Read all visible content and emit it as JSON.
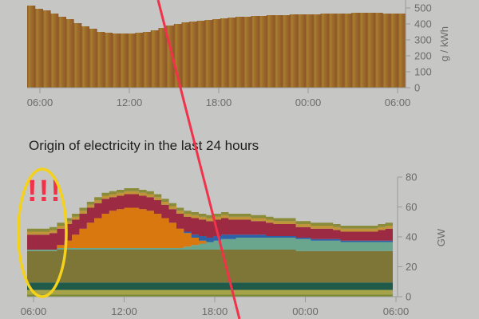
{
  "origin_title": "Origin of electricity in the last 24 hours",
  "annotation_text": "!!!",
  "colors": {
    "background": "#c6c6c4",
    "red_marker": "#f0324b",
    "yellow_circle": "#f4d21c",
    "intensity_fill_dark": "#8c5426",
    "intensity_fill_light": "#a67f30"
  },
  "chart_data": [
    {
      "type": "bar",
      "ylabel": "g / kWh",
      "ylim": [
        0,
        550
      ],
      "yticks": [
        "0",
        "100",
        "200",
        "300",
        "400",
        "500"
      ],
      "xticks": [
        "06:00",
        "12:00",
        "18:00",
        "00:00",
        "06:00"
      ],
      "x": [
        "06:00",
        "06:30",
        "07:00",
        "07:30",
        "08:00",
        "08:30",
        "09:00",
        "09:30",
        "10:00",
        "10:30",
        "11:00",
        "11:30",
        "12:00",
        "12:30",
        "13:00",
        "13:30",
        "14:00",
        "14:30",
        "15:00",
        "15:30",
        "16:00",
        "16:30",
        "17:00",
        "17:30",
        "18:00",
        "18:30",
        "19:00",
        "19:30",
        "20:00",
        "20:30",
        "21:00",
        "21:30",
        "22:00",
        "22:30",
        "23:00",
        "23:30",
        "00:00",
        "00:30",
        "01:00",
        "01:30",
        "02:00",
        "02:30",
        "03:00",
        "03:30",
        "04:00",
        "04:30",
        "05:00",
        "05:30",
        "06:00"
      ],
      "values": [
        515,
        495,
        485,
        465,
        445,
        430,
        405,
        385,
        370,
        350,
        345,
        340,
        340,
        340,
        345,
        350,
        360,
        375,
        390,
        400,
        410,
        415,
        420,
        425,
        430,
        435,
        440,
        445,
        445,
        450,
        450,
        455,
        455,
        455,
        460,
        460,
        460,
        460,
        465,
        465,
        465,
        465,
        470,
        470,
        470,
        470,
        465,
        465,
        465
      ]
    },
    {
      "type": "area",
      "ylabel": "GW",
      "ylim": [
        0,
        80
      ],
      "yticks": [
        "0",
        "20",
        "40",
        "60",
        "80"
      ],
      "xticks": [
        "06:00",
        "12:00",
        "18:00",
        "00:00",
        "06:00"
      ],
      "x": [
        "06:00",
        "06:30",
        "07:00",
        "07:30",
        "08:00",
        "08:30",
        "09:00",
        "09:30",
        "10:00",
        "10:30",
        "11:00",
        "11:30",
        "12:00",
        "12:30",
        "13:00",
        "13:30",
        "14:00",
        "14:30",
        "15:00",
        "15:30",
        "16:00",
        "16:30",
        "17:00",
        "17:30",
        "18:00",
        "18:30",
        "19:00",
        "19:30",
        "20:00",
        "20:30",
        "21:00",
        "21:30",
        "22:00",
        "22:30",
        "23:00",
        "23:30",
        "00:00",
        "00:30",
        "01:00",
        "01:30",
        "02:00",
        "02:30",
        "03:00",
        "03:30",
        "04:00",
        "04:30",
        "05:00",
        "05:30",
        "06:00"
      ],
      "series": [
        {
          "color": "#7a8a2a",
          "values": [
            1.5,
            1.5,
            1.5,
            1.5,
            1.5,
            1.5,
            1.5,
            1.5,
            1.5,
            1.5,
            1.5,
            1.5,
            1.5,
            1.5,
            1.5,
            1.5,
            1.5,
            1.5,
            1.5,
            1.5,
            1.5,
            1.5,
            1.5,
            1.5,
            1.5,
            1.5,
            1.5,
            1.5,
            1.5,
            1.5,
            1.5,
            1.5,
            1.5,
            1.5,
            1.5,
            1.5,
            1.5,
            1.5,
            1.5,
            1.5,
            1.5,
            1.5,
            1.5,
            1.5,
            1.5,
            1.5,
            1.5,
            1.5,
            1.5
          ]
        },
        {
          "color": "#a7a34a",
          "values": [
            3,
            3,
            3,
            3,
            3,
            3,
            3,
            3,
            3,
            3,
            3,
            3,
            3,
            3,
            3,
            3,
            3,
            3,
            3,
            3,
            3,
            3,
            3,
            3,
            3,
            3,
            3,
            3,
            3,
            3,
            3,
            3,
            3,
            3,
            3,
            3,
            3,
            3,
            3,
            3,
            3,
            3,
            3,
            3,
            3,
            3,
            3,
            3,
            3
          ]
        },
        {
          "color": "#1f5a4a",
          "values": [
            5,
            5,
            5,
            5,
            5,
            5,
            5,
            5,
            5,
            5,
            5,
            5,
            5,
            5,
            5,
            5,
            5,
            5,
            5,
            5,
            5,
            5,
            5,
            5,
            5,
            5,
            5,
            5,
            5,
            5,
            5,
            5,
            5,
            5,
            5,
            5,
            5,
            5,
            5,
            5,
            5,
            5,
            5,
            5,
            5,
            5,
            5,
            5,
            5
          ]
        },
        {
          "color": "#7d7636",
          "values": [
            21,
            21,
            21,
            21,
            22,
            22,
            22,
            22,
            22,
            22,
            22,
            22,
            22,
            22,
            22,
            22,
            22,
            22,
            22,
            22,
            22,
            22,
            22,
            22,
            22,
            22,
            22,
            22,
            22,
            22,
            22,
            22,
            22,
            22,
            22,
            22,
            21,
            21,
            21,
            21,
            21,
            21,
            21,
            21,
            21,
            21,
            21,
            21,
            21
          ]
        },
        {
          "color": "#6aa58e",
          "values": [
            1,
            1,
            1,
            1,
            1,
            1,
            1,
            1,
            1,
            1,
            1,
            1,
            1,
            1,
            1,
            1,
            1,
            1,
            1,
            1,
            1,
            2,
            3,
            4,
            5,
            6,
            7,
            7,
            8,
            8,
            8,
            8,
            8,
            8,
            8,
            8,
            8,
            8,
            7,
            7,
            7,
            7,
            6,
            6,
            6,
            6,
            6,
            6,
            6
          ]
        },
        {
          "color": "#d9780f",
          "values": [
            0,
            0,
            0,
            0,
            2,
            5,
            9,
            13,
            17,
            20,
            23,
            25,
            26,
            27,
            27,
            26,
            25,
            23,
            20,
            17,
            13,
            9,
            5,
            2,
            0,
            0,
            0,
            0,
            0,
            0,
            0,
            0,
            0,
            0,
            0,
            0,
            0,
            0,
            0,
            0,
            0,
            0,
            0,
            0,
            0,
            0,
            0,
            0,
            0
          ]
        },
        {
          "color": "#2e62a8",
          "values": [
            0,
            0,
            0,
            0,
            0,
            0,
            0,
            0,
            0,
            0,
            0,
            0,
            0,
            0,
            0,
            0,
            0,
            0,
            0,
            0,
            0,
            1,
            2,
            3,
            3,
            3,
            3,
            3,
            2,
            2,
            2,
            2,
            1,
            1,
            1,
            1,
            1,
            1,
            1,
            1,
            1,
            1,
            1,
            1,
            1,
            1,
            1,
            1,
            1
          ]
        },
        {
          "color": "#9c2a43",
          "values": [
            10,
            10,
            10,
            11,
            11,
            11,
            10,
            10,
            10,
            10,
            10,
            9,
            9,
            9,
            9,
            9,
            9,
            9,
            9,
            9,
            10,
            10,
            11,
            11,
            11,
            11,
            11,
            10,
            10,
            10,
            9,
            9,
            9,
            8,
            8,
            8,
            7,
            7,
            7,
            7,
            7,
            6,
            6,
            6,
            6,
            6,
            6,
            7,
            8
          ]
        },
        {
          "color": "#c0953a",
          "values": [
            2,
            2,
            2,
            2,
            2,
            2,
            2,
            2,
            2,
            2,
            2,
            2,
            2,
            2,
            2,
            2,
            2,
            2,
            2,
            2,
            2,
            2,
            2,
            2,
            2,
            2,
            2,
            2,
            2,
            2,
            2,
            2,
            2,
            2,
            2,
            2,
            2,
            2,
            2,
            2,
            2,
            2,
            2,
            2,
            2,
            2,
            2,
            2,
            2
          ]
        },
        {
          "color": "#8a8c3a",
          "values": [
            2,
            2,
            2,
            2,
            2,
            2,
            2,
            2,
            2,
            2,
            2,
            2,
            2,
            2,
            2,
            2,
            2,
            2,
            2,
            2,
            2,
            2,
            2,
            2,
            2,
            2,
            2,
            2,
            2,
            2,
            2,
            2,
            2,
            2,
            2,
            2,
            2,
            2,
            2,
            2,
            2,
            2,
            2,
            2,
            2,
            2,
            2,
            2,
            2
          ]
        }
      ]
    }
  ]
}
